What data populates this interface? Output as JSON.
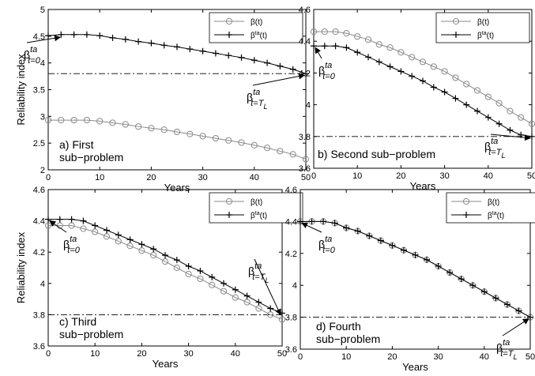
{
  "chart_data": [
    {
      "type": "line",
      "caption_lines": [
        "a) First",
        "sub−problem"
      ],
      "xlabel": "Years",
      "ylabel": "Reliability index",
      "xlim": [
        0,
        50
      ],
      "ylim": [
        2,
        5
      ],
      "xticks": [
        0,
        10,
        20,
        30,
        40,
        50
      ],
      "yticks": [
        2,
        2.5,
        3,
        3.5,
        4,
        4.5,
        5
      ],
      "ytick_labels": [
        "2",
        "2.5",
        "3",
        "3.5",
        "4",
        "4.5",
        "5"
      ],
      "legend": [
        "β(t)",
        "βta(t)"
      ],
      "legend_position": "top-right",
      "threshold": 3.8,
      "x": [
        0,
        2.5,
        5,
        7.5,
        10,
        12.5,
        15,
        17.5,
        20,
        22.5,
        25,
        27.5,
        30,
        32.5,
        35,
        37.5,
        40,
        42.5,
        45,
        47.5,
        50
      ],
      "series": [
        {
          "name": "β(t)",
          "marker": "circle",
          "values": [
            2.93,
            2.93,
            2.93,
            2.93,
            2.91,
            2.88,
            2.85,
            2.81,
            2.78,
            2.75,
            2.71,
            2.67,
            2.63,
            2.59,
            2.55,
            2.51,
            2.46,
            2.41,
            2.35,
            2.29,
            2.2
          ]
        },
        {
          "name": "βta(t)",
          "marker": "plus",
          "values": [
            4.51,
            4.53,
            4.53,
            4.53,
            4.51,
            4.47,
            4.44,
            4.4,
            4.37,
            4.33,
            4.3,
            4.26,
            4.22,
            4.18,
            4.14,
            4.1,
            4.05,
            4.0,
            3.94,
            3.88,
            3.8
          ]
        }
      ]
    },
    {
      "type": "line",
      "caption_lines": [
        "b) Second sub−problem"
      ],
      "xlabel": "Years",
      "ylabel": "",
      "xlim": [
        0,
        50
      ],
      "ylim": [
        3.6,
        4.6
      ],
      "xticks": [
        0,
        10,
        20,
        30,
        40,
        50
      ],
      "yticks": [
        3.6,
        3.8,
        4,
        4.2,
        4.4,
        4.6
      ],
      "ytick_labels": [
        "3.6",
        "3.8",
        "4",
        "4.2",
        "4.4",
        "4.6"
      ],
      "legend": [
        "β(t)",
        "βta(t)"
      ],
      "legend_position": "top-right",
      "threshold": 3.8,
      "x": [
        0,
        2.5,
        5,
        7.5,
        10,
        12.5,
        15,
        17.5,
        20,
        22.5,
        25,
        27.5,
        30,
        32.5,
        35,
        37.5,
        40,
        42.5,
        45,
        47.5,
        50
      ],
      "series": [
        {
          "name": "β(t)",
          "marker": "circle",
          "values": [
            4.46,
            4.46,
            4.46,
            4.45,
            4.43,
            4.41,
            4.38,
            4.36,
            4.33,
            4.3,
            4.27,
            4.24,
            4.21,
            4.17,
            4.13,
            4.09,
            4.05,
            4.01,
            3.96,
            3.92,
            3.88
          ]
        },
        {
          "name": "βta(t)",
          "marker": "plus",
          "values": [
            4.37,
            4.37,
            4.37,
            4.36,
            4.33,
            4.3,
            4.27,
            4.24,
            4.21,
            4.18,
            4.15,
            4.11,
            4.08,
            4.04,
            4.0,
            3.96,
            3.92,
            3.88,
            3.84,
            3.81,
            3.8
          ]
        }
      ]
    },
    {
      "type": "line",
      "caption_lines": [
        "c) Third",
        "sub−problem"
      ],
      "xlabel": "Years",
      "ylabel": "Reliability index",
      "xlim": [
        0,
        50
      ],
      "ylim": [
        3.6,
        4.6
      ],
      "xticks": [
        0,
        10,
        20,
        30,
        40,
        50
      ],
      "yticks": [
        3.6,
        3.8,
        4,
        4.2,
        4.4,
        4.6
      ],
      "ytick_labels": [
        "3.6",
        "3.8",
        "4",
        "4.2",
        "4.4",
        "4.6"
      ],
      "legend": [
        "β(t)",
        "βta(t)"
      ],
      "legend_position": "top-right",
      "threshold": 3.8,
      "x": [
        0,
        2.5,
        5,
        7.5,
        10,
        12.5,
        15,
        17.5,
        20,
        22.5,
        25,
        27.5,
        30,
        32.5,
        35,
        37.5,
        40,
        42.5,
        45,
        47.5,
        50
      ],
      "series": [
        {
          "name": "β(t)",
          "marker": "circle",
          "values": [
            4.37,
            4.37,
            4.37,
            4.35,
            4.33,
            4.3,
            4.27,
            4.24,
            4.21,
            4.18,
            4.14,
            4.1,
            4.06,
            4.03,
            3.99,
            3.95,
            3.91,
            3.88,
            3.84,
            3.8,
            3.77
          ]
        },
        {
          "name": "βta(t)",
          "marker": "plus",
          "values": [
            4.41,
            4.41,
            4.41,
            4.4,
            4.37,
            4.34,
            4.31,
            4.28,
            4.25,
            4.22,
            4.18,
            4.15,
            4.11,
            4.08,
            4.04,
            4.0,
            3.96,
            3.92,
            3.88,
            3.84,
            3.81
          ]
        }
      ]
    },
    {
      "type": "line",
      "caption_lines": [
        "d) Fourth",
        "sub−problem"
      ],
      "xlabel": "Years",
      "ylabel": "",
      "xlim": [
        0,
        50
      ],
      "ylim": [
        3.6,
        4.6
      ],
      "xticks": [
        0,
        10,
        20,
        30,
        40,
        50
      ],
      "yticks": [
        3.6,
        3.8,
        4,
        4.2,
        4.4,
        4.6
      ],
      "ytick_labels": [
        "3.6",
        "3.8",
        "4",
        "4.2",
        "4.4",
        "4.6"
      ],
      "legend": [
        "β(t)",
        "βta(t)"
      ],
      "legend_position": "top-right",
      "threshold": 3.8,
      "x": [
        0,
        2.5,
        5,
        7.5,
        10,
        12.5,
        15,
        17.5,
        20,
        22.5,
        25,
        27.5,
        30,
        32.5,
        35,
        37.5,
        40,
        42.5,
        45,
        47.5,
        50
      ],
      "series": [
        {
          "name": "β(t)",
          "marker": "circle",
          "values": [
            4.4,
            4.4,
            4.4,
            4.39,
            4.36,
            4.34,
            4.31,
            4.28,
            4.25,
            4.22,
            4.19,
            4.16,
            4.12,
            4.08,
            4.04,
            4.0,
            3.96,
            3.92,
            3.88,
            3.84,
            3.8
          ]
        },
        {
          "name": "βta(t)",
          "marker": "plus",
          "values": [
            4.4,
            4.4,
            4.4,
            4.39,
            4.36,
            4.34,
            4.31,
            4.28,
            4.25,
            4.22,
            4.19,
            4.16,
            4.12,
            4.08,
            4.04,
            4.0,
            3.96,
            3.92,
            3.88,
            3.84,
            3.8
          ]
        }
      ]
    }
  ],
  "annotations": {
    "beta": "β",
    "ta": "ta",
    "sub_start": "t=0",
    "sub_end": "t=T",
    "sub_end_L": "L"
  }
}
